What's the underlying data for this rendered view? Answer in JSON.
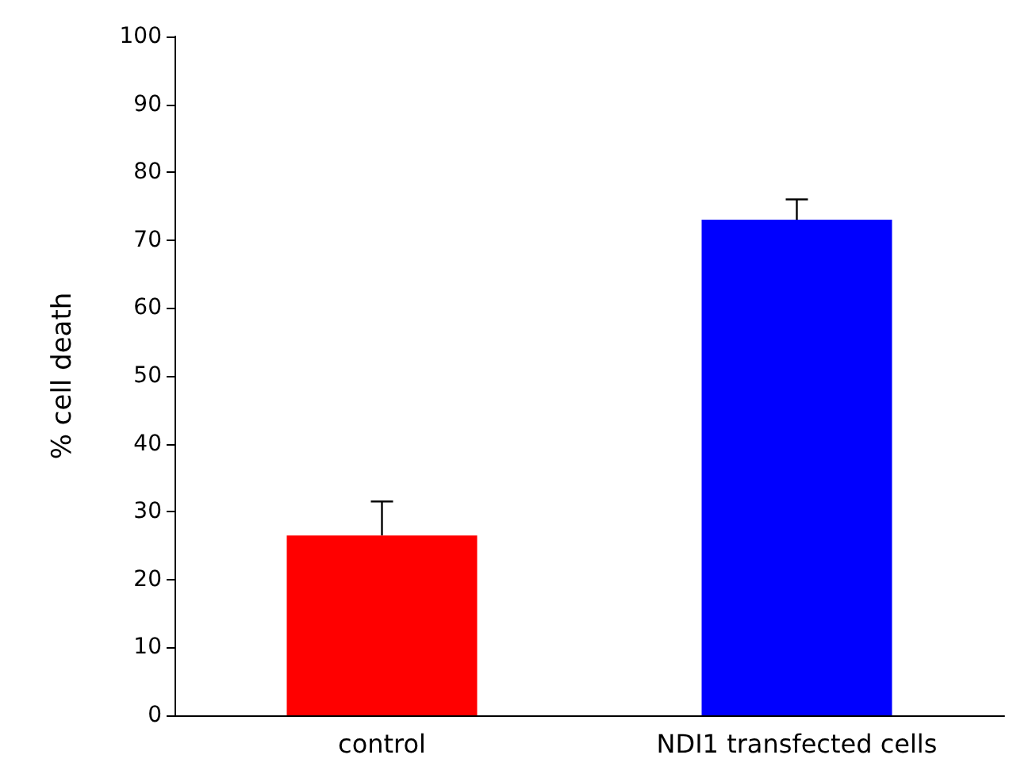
{
  "chart_data": {
    "type": "bar",
    "ylabel": "% cell death",
    "categories": [
      "control",
      "NDI1 transfected cells"
    ],
    "values": [
      26.5,
      73
    ],
    "colors": [
      "#ff0000",
      "#0000ff"
    ],
    "errors": [
      [
        26.5,
        31.5
      ],
      [
        73,
        76
      ]
    ],
    "ylim": [
      0,
      100
    ],
    "yticks": [
      0,
      10,
      20,
      30,
      40,
      50,
      60,
      70,
      80,
      90,
      100
    ],
    "grid": false
  }
}
